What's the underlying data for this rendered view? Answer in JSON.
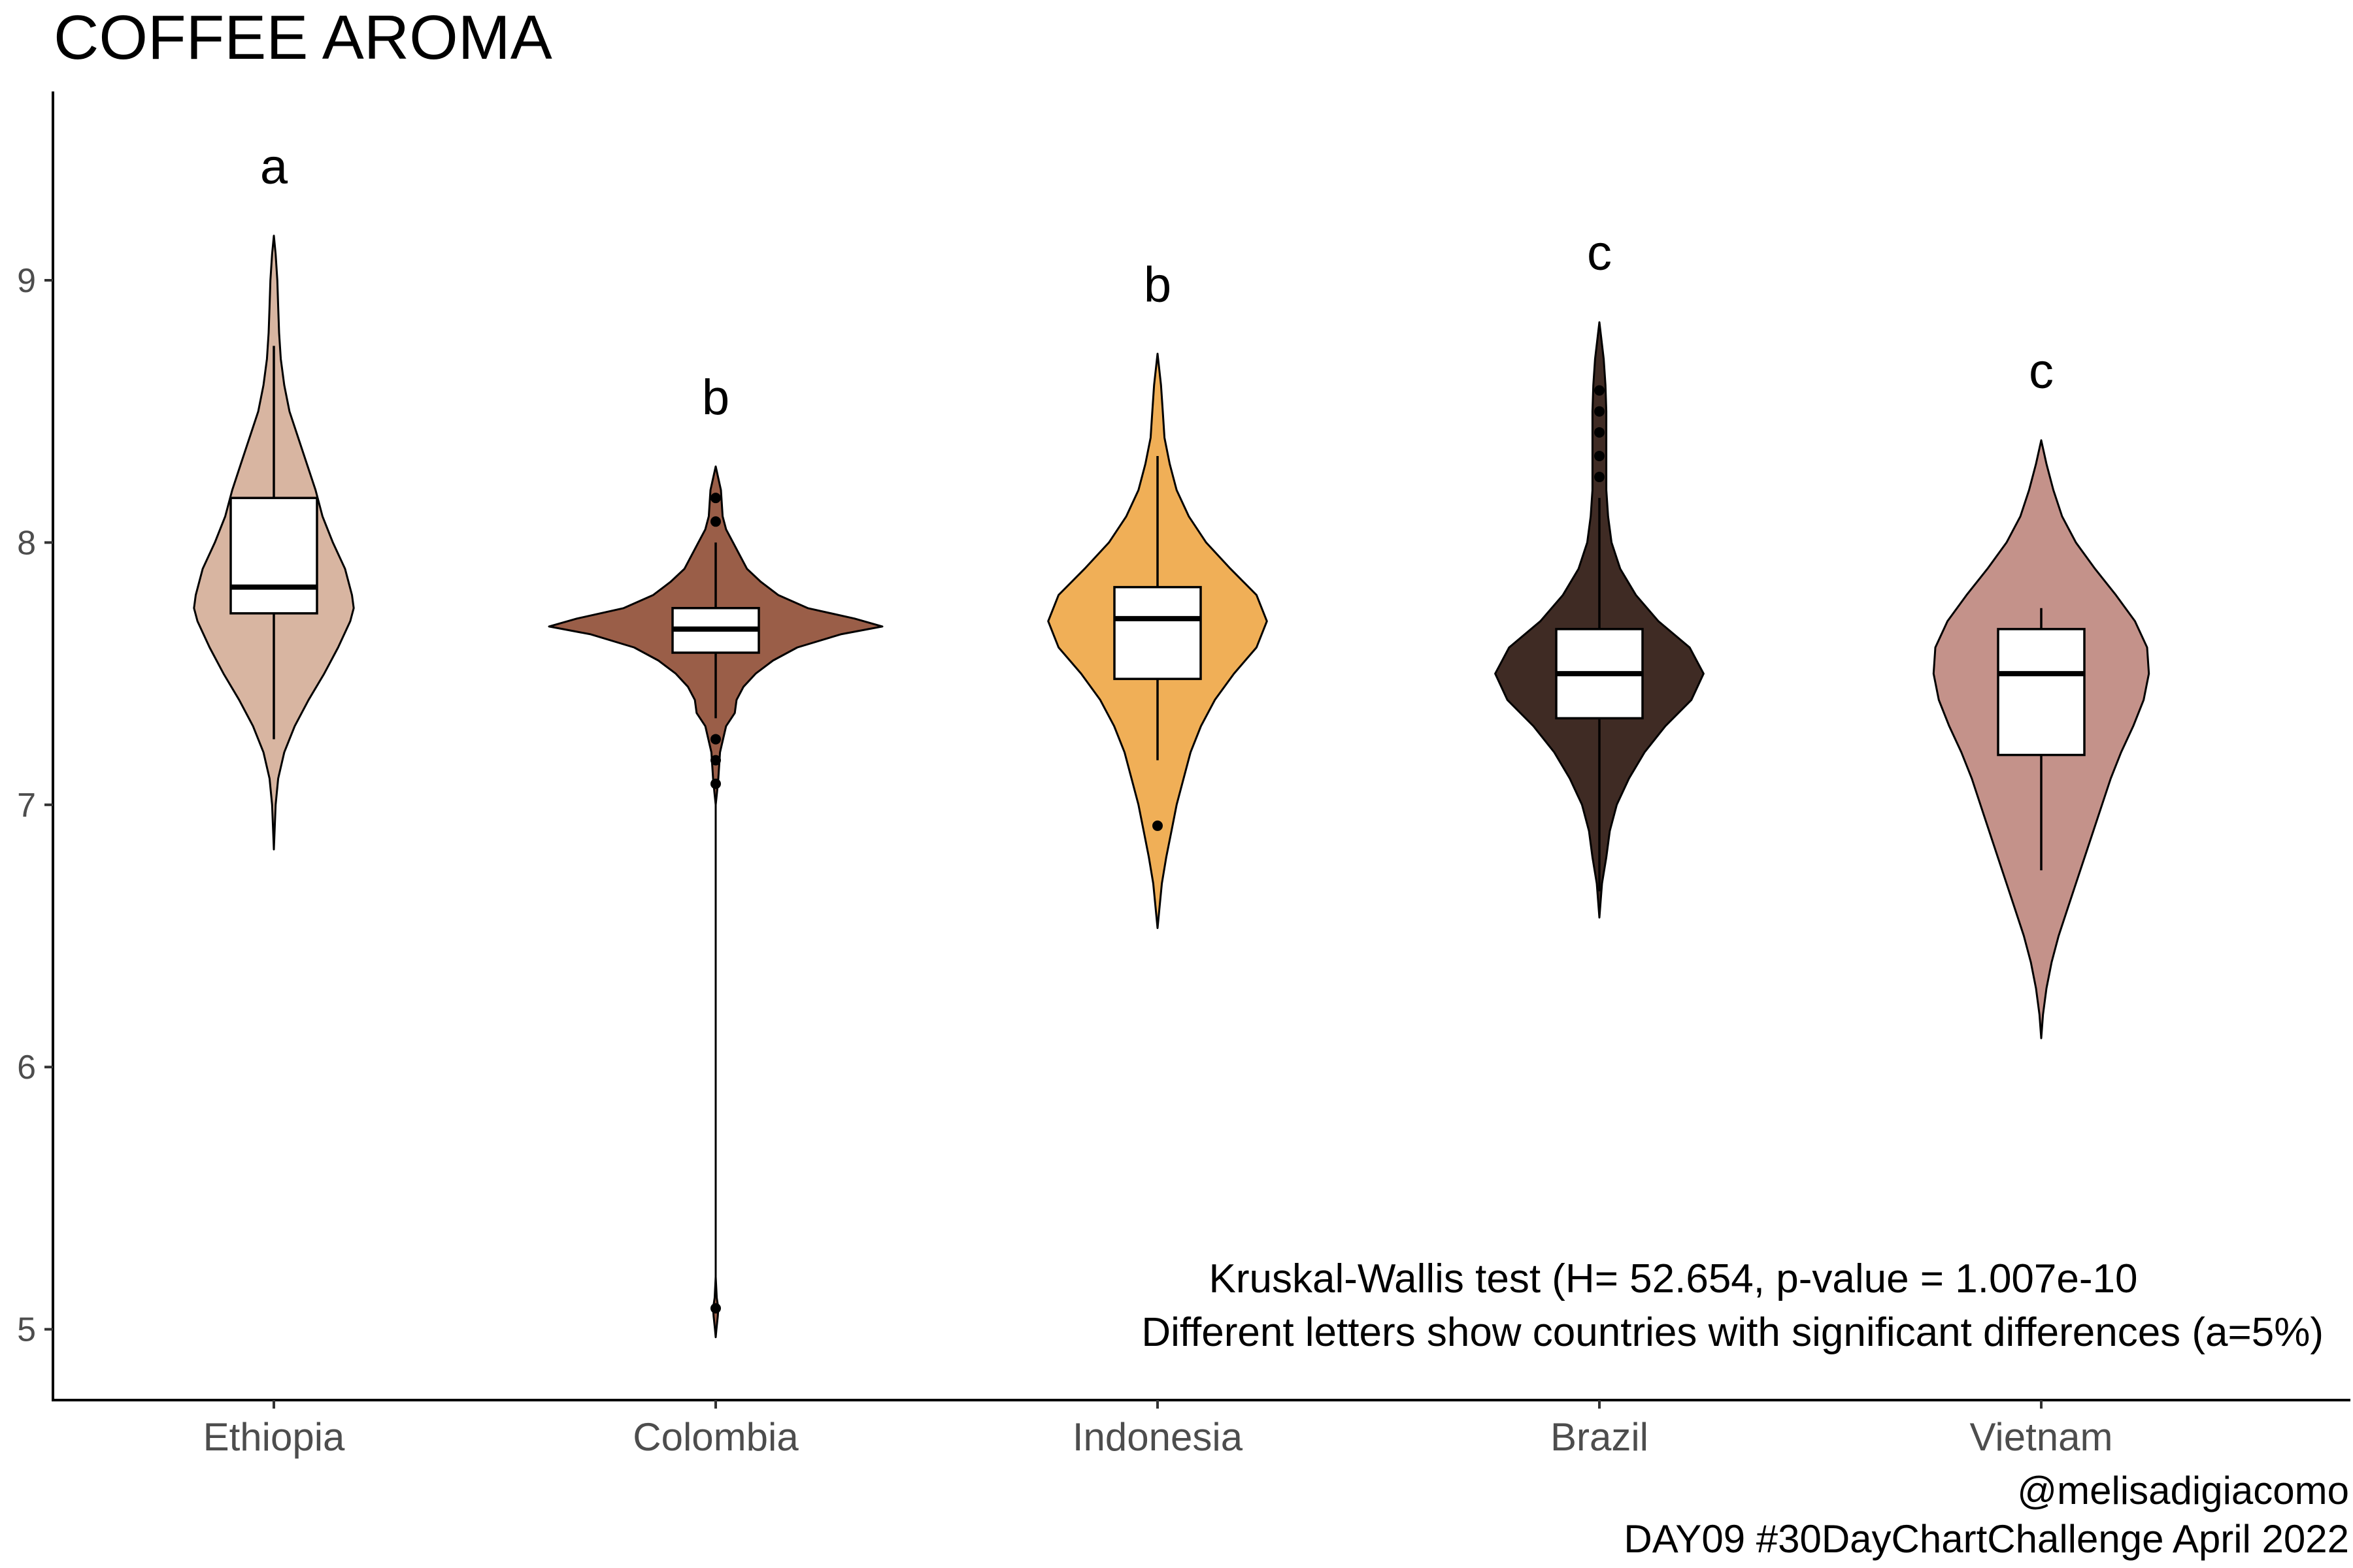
{
  "title": "COFFEE AROMA",
  "annotation": {
    "line1": "Kruskal-Wallis test (H= 52.654, p-value = 1.007e-10",
    "line2": "Different letters show countries with significant differences (a=5%)"
  },
  "caption": {
    "line1": "@melisadigiacomo",
    "line2": "DAY09 #30DayChartChallenge April 2022"
  },
  "chart_data": {
    "type": "violin",
    "title": "COFFEE AROMA",
    "xlabel": "",
    "ylabel": "",
    "ylim": [
      4.73,
      9.72
    ],
    "yticks": [
      5,
      6,
      7,
      8,
      9
    ],
    "grid": false,
    "categories": [
      "Ethiopia",
      "Colombia",
      "Indonesia",
      "Brazil",
      "Vietnam"
    ],
    "series": [
      {
        "category": "Ethiopia",
        "letter": "a",
        "color": "#D8B5A1",
        "min": 6.83,
        "max": 9.17,
        "box": {
          "q1": 7.73,
          "median": 7.83,
          "q3": 8.17,
          "whisker_low": 7.25,
          "whisker_high": 8.75
        },
        "outliers": [],
        "density": [
          [
            6.83,
            0.0
          ],
          [
            7.0,
            0.01
          ],
          [
            7.1,
            0.025
          ],
          [
            7.2,
            0.06
          ],
          [
            7.3,
            0.12
          ],
          [
            7.4,
            0.2
          ],
          [
            7.5,
            0.29
          ],
          [
            7.6,
            0.37
          ],
          [
            7.7,
            0.44
          ],
          [
            7.75,
            0.46
          ],
          [
            7.8,
            0.45
          ],
          [
            7.9,
            0.41
          ],
          [
            8.0,
            0.34
          ],
          [
            8.1,
            0.28
          ],
          [
            8.2,
            0.24
          ],
          [
            8.3,
            0.19
          ],
          [
            8.4,
            0.14
          ],
          [
            8.5,
            0.09
          ],
          [
            8.6,
            0.06
          ],
          [
            8.7,
            0.04
          ],
          [
            8.8,
            0.03
          ],
          [
            8.9,
            0.025
          ],
          [
            9.0,
            0.02
          ],
          [
            9.1,
            0.01
          ],
          [
            9.17,
            0.0
          ]
        ]
      },
      {
        "category": "Colombia",
        "letter": "b",
        "color": "#9A5E48",
        "min": 4.97,
        "max": 8.29,
        "box": {
          "q1": 7.58,
          "median": 7.67,
          "q3": 7.75,
          "whisker_low": 7.33,
          "whisker_high": 8.0
        },
        "outliers": [
          7.25,
          7.17,
          7.08,
          8.08,
          8.17,
          5.08
        ],
        "density": [
          [
            4.97,
            0.0
          ],
          [
            5.0,
            0.004
          ],
          [
            5.05,
            0.012
          ],
          [
            5.08,
            0.015
          ],
          [
            5.12,
            0.006
          ],
          [
            5.2,
            0.0
          ],
          [
            7.0,
            0.0
          ],
          [
            7.05,
            0.008
          ],
          [
            7.1,
            0.015
          ],
          [
            7.2,
            0.025
          ],
          [
            7.3,
            0.06
          ],
          [
            7.35,
            0.11
          ],
          [
            7.4,
            0.12
          ],
          [
            7.45,
            0.16
          ],
          [
            7.5,
            0.23
          ],
          [
            7.55,
            0.33
          ],
          [
            7.6,
            0.47
          ],
          [
            7.65,
            0.72
          ],
          [
            7.68,
            0.96
          ],
          [
            7.71,
            0.8
          ],
          [
            7.75,
            0.53
          ],
          [
            7.8,
            0.36
          ],
          [
            7.85,
            0.26
          ],
          [
            7.9,
            0.18
          ],
          [
            8.0,
            0.1
          ],
          [
            8.05,
            0.06
          ],
          [
            8.1,
            0.04
          ],
          [
            8.2,
            0.03
          ],
          [
            8.29,
            0.0
          ]
        ]
      },
      {
        "category": "Indonesia",
        "letter": "b",
        "color": "#F0AF57",
        "min": 6.53,
        "max": 8.72,
        "box": {
          "q1": 7.48,
          "median": 7.71,
          "q3": 7.83,
          "whisker_low": 7.17,
          "whisker_high": 8.33
        },
        "outliers": [
          6.92
        ],
        "density": [
          [
            6.53,
            0.0
          ],
          [
            6.6,
            0.01
          ],
          [
            6.7,
            0.025
          ],
          [
            6.8,
            0.05
          ],
          [
            6.9,
            0.08
          ],
          [
            7.0,
            0.11
          ],
          [
            7.1,
            0.15
          ],
          [
            7.2,
            0.19
          ],
          [
            7.3,
            0.25
          ],
          [
            7.4,
            0.33
          ],
          [
            7.5,
            0.44
          ],
          [
            7.6,
            0.57
          ],
          [
            7.7,
            0.63
          ],
          [
            7.8,
            0.57
          ],
          [
            7.9,
            0.42
          ],
          [
            8.0,
            0.28
          ],
          [
            8.1,
            0.18
          ],
          [
            8.2,
            0.11
          ],
          [
            8.3,
            0.07
          ],
          [
            8.4,
            0.04
          ],
          [
            8.5,
            0.03
          ],
          [
            8.6,
            0.02
          ],
          [
            8.72,
            0.0
          ]
        ]
      },
      {
        "category": "Brazil",
        "letter": "c",
        "color": "#3F2B24",
        "min": 6.57,
        "max": 8.84,
        "box": {
          "q1": 7.33,
          "median": 7.5,
          "q3": 7.67,
          "whisker_low": 6.67,
          "whisker_high": 8.17
        },
        "outliers": [
          8.25,
          8.33,
          8.42,
          8.5,
          8.58
        ],
        "density": [
          [
            6.57,
            0.0
          ],
          [
            6.7,
            0.015
          ],
          [
            6.8,
            0.04
          ],
          [
            6.9,
            0.06
          ],
          [
            7.0,
            0.1
          ],
          [
            7.1,
            0.17
          ],
          [
            7.2,
            0.26
          ],
          [
            7.3,
            0.38
          ],
          [
            7.4,
            0.53
          ],
          [
            7.5,
            0.6
          ],
          [
            7.6,
            0.52
          ],
          [
            7.7,
            0.34
          ],
          [
            7.8,
            0.21
          ],
          [
            7.9,
            0.12
          ],
          [
            8.0,
            0.07
          ],
          [
            8.1,
            0.05
          ],
          [
            8.2,
            0.04
          ],
          [
            8.3,
            0.04
          ],
          [
            8.4,
            0.04
          ],
          [
            8.5,
            0.04
          ],
          [
            8.6,
            0.035
          ],
          [
            8.7,
            0.025
          ],
          [
            8.84,
            0.0
          ]
        ]
      },
      {
        "category": "Vietnam",
        "letter": "c",
        "color": "#C4928A",
        "min": 6.11,
        "max": 8.39,
        "box": {
          "q1": 7.19,
          "median": 7.5,
          "q3": 7.67,
          "whisker_low": 6.75,
          "whisker_high": 7.75
        },
        "outliers": [],
        "density": [
          [
            6.11,
            0.0
          ],
          [
            6.2,
            0.01
          ],
          [
            6.3,
            0.03
          ],
          [
            6.4,
            0.06
          ],
          [
            6.5,
            0.1
          ],
          [
            6.6,
            0.15
          ],
          [
            6.7,
            0.2
          ],
          [
            6.8,
            0.25
          ],
          [
            6.9,
            0.3
          ],
          [
            7.0,
            0.35
          ],
          [
            7.1,
            0.4
          ],
          [
            7.2,
            0.46
          ],
          [
            7.3,
            0.53
          ],
          [
            7.4,
            0.59
          ],
          [
            7.5,
            0.62
          ],
          [
            7.6,
            0.61
          ],
          [
            7.7,
            0.54
          ],
          [
            7.8,
            0.43
          ],
          [
            7.9,
            0.31
          ],
          [
            8.0,
            0.2
          ],
          [
            8.1,
            0.12
          ],
          [
            8.2,
            0.07
          ],
          [
            8.3,
            0.03
          ],
          [
            8.39,
            0.0
          ]
        ]
      }
    ]
  }
}
